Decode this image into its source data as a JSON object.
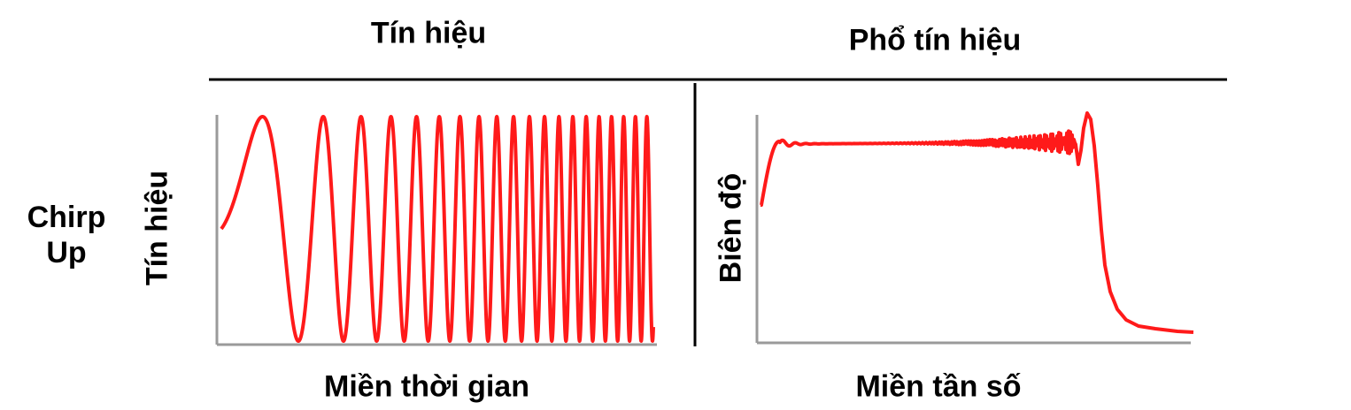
{
  "header": {
    "signal_title": "Tín hiệu",
    "spectrum_title": "Phổ tín hiệu"
  },
  "row": {
    "label_line1": "Chirp",
    "label_line2": "Up"
  },
  "time_panel": {
    "ylabel": "Tín hiệu",
    "xlabel": "Miền thời gian"
  },
  "freq_panel": {
    "ylabel": "Biên độ",
    "xlabel": "Miền tần số"
  },
  "colors": {
    "curve": "#ff1a1a",
    "axis": "#9a9a9a",
    "rule": "#000000"
  }
}
